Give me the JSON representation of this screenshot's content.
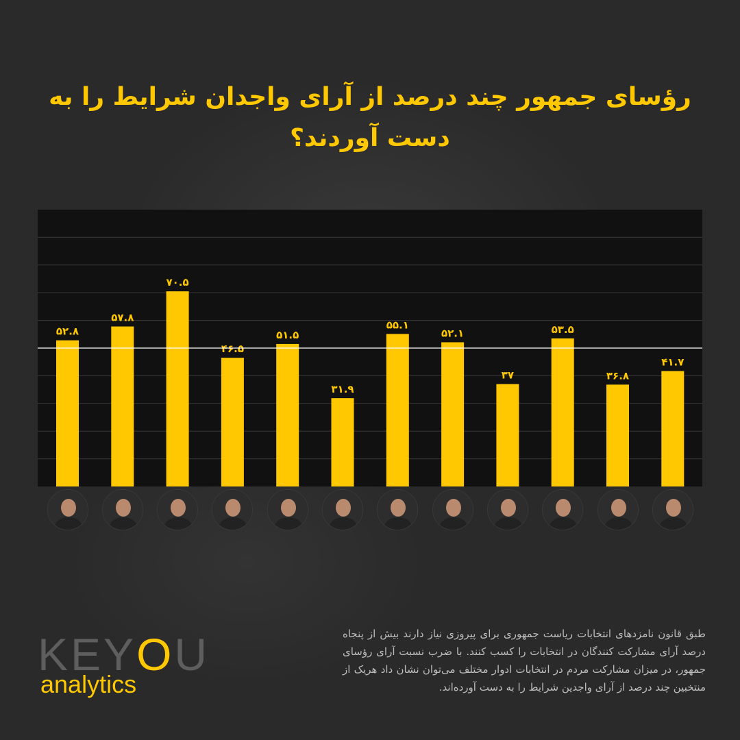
{
  "title": "رؤسای جمهور چند درصد از آرای واجدان شرایط را به دست آوردند؟",
  "description": "طبق قانون نامزدهای انتخابات ریاست جمهوری برای پیروزی نیاز دارند بیش از پنجاه درصد آرای مشارکت کنندگان در انتخابات را کسب کنند. با ضرب نسبت آرای رؤسای جمهور، در میزان مشارکت مردم در انتخابات ادوار مختلف می‌توان نشان داد هریک از منتخبین چند درصد از آرای واجدین شرایط را به دست آورده‌اند.",
  "logo": {
    "top": "KEYOU",
    "bottom": "analytics"
  },
  "colors": {
    "bar": "#ffc800",
    "background": "#2a2a2a",
    "plot_bg": "#111111",
    "grid": "#3a3a3a",
    "reference_line": "#ffffff",
    "label": "#ffc800"
  },
  "chart_data": {
    "type": "bar",
    "title": "رؤسای جمهور چند درصد از آرای واجدان شرایط را به دست آوردند؟",
    "categories": [
      "",
      "",
      "",
      "",
      "",
      "",
      "",
      "",
      "",
      "",
      "",
      ""
    ],
    "values": [
      52.8,
      57.8,
      70.5,
      46.5,
      51.5,
      31.9,
      55.1,
      52.1,
      37,
      53.5,
      36.8,
      41.7
    ],
    "value_labels": [
      "۵۲.۸",
      "۵۷.۸",
      "۷۰.۵",
      "۴۶.۵",
      "۵۱.۵",
      "۳۱.۹",
      "۵۵.۱",
      "۵۲.۱",
      "۳۷",
      "۵۳.۵",
      "۳۶.۸",
      "۴۱.۷"
    ],
    "ylim": [
      0,
      100
    ],
    "reference_line": 50,
    "grid": true,
    "xlabel": "",
    "ylabel": ""
  },
  "avatars": [
    "portrait-icon",
    "portrait-icon",
    "portrait-icon",
    "portrait-icon",
    "portrait-icon",
    "portrait-icon",
    "portrait-icon",
    "portrait-icon",
    "portrait-icon",
    "portrait-icon",
    "portrait-icon",
    "portrait-icon"
  ]
}
